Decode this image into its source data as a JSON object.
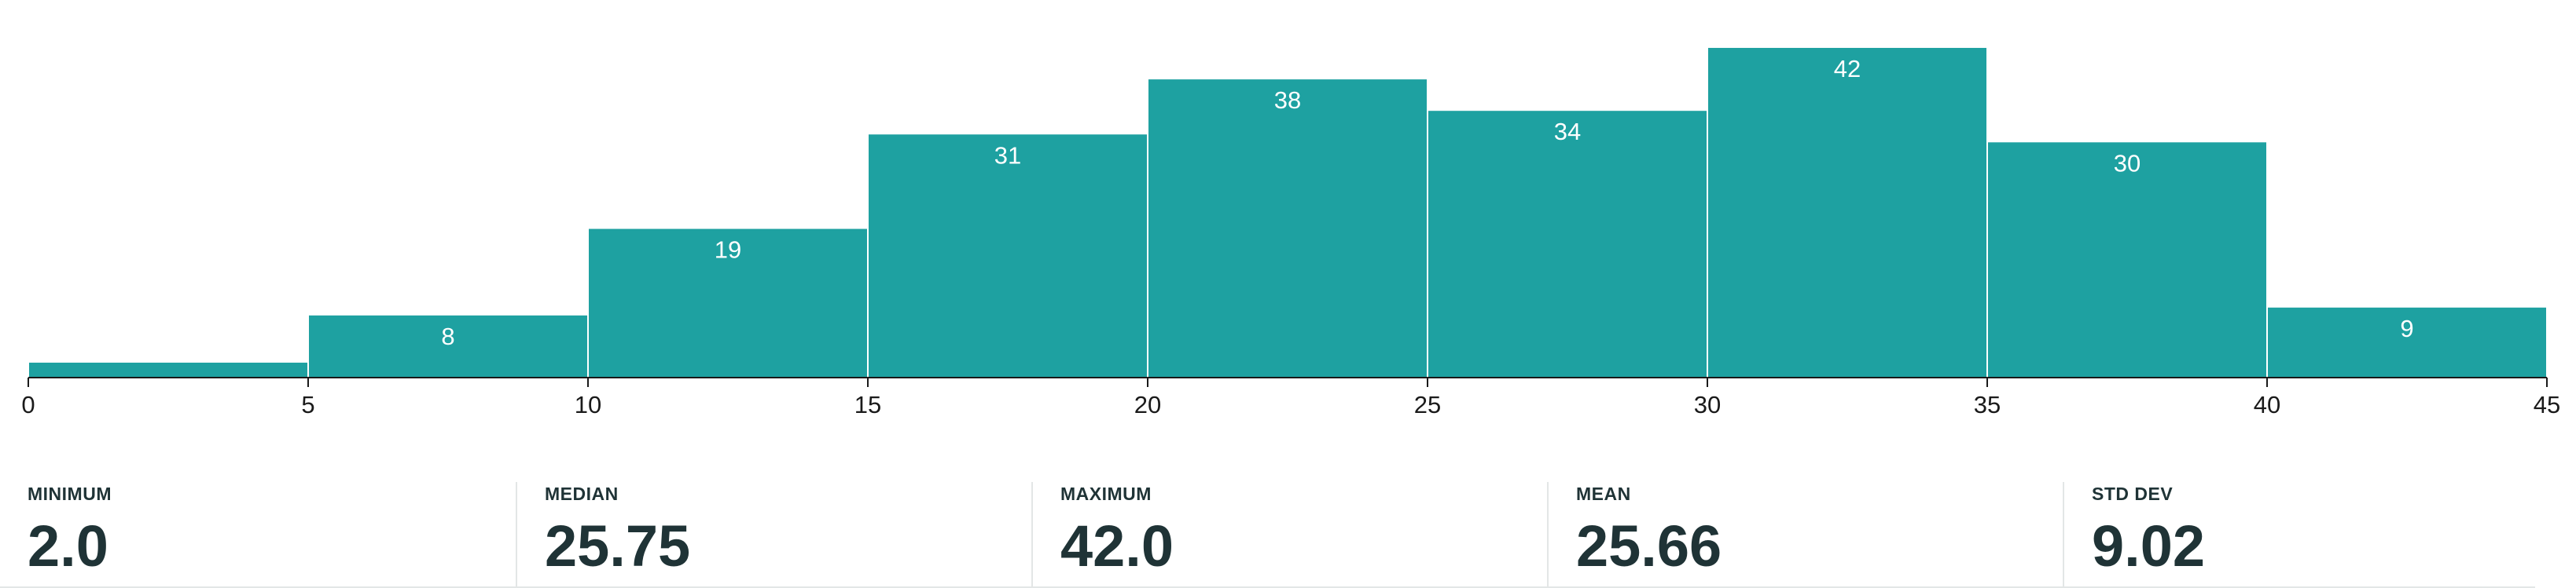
{
  "chart_data": {
    "type": "bar",
    "bins": [
      {
        "start": 0,
        "end": 5,
        "count": 2
      },
      {
        "start": 5,
        "end": 10,
        "count": 8
      },
      {
        "start": 10,
        "end": 15,
        "count": 19
      },
      {
        "start": 15,
        "end": 20,
        "count": 31
      },
      {
        "start": 20,
        "end": 25,
        "count": 38
      },
      {
        "start": 25,
        "end": 30,
        "count": 34
      },
      {
        "start": 30,
        "end": 35,
        "count": 42
      },
      {
        "start": 35,
        "end": 40,
        "count": 30
      },
      {
        "start": 40,
        "end": 45,
        "count": 9
      }
    ],
    "bar_labels": [
      "",
      "8",
      "19",
      "31",
      "38",
      "34",
      "42",
      "30",
      "9"
    ],
    "x_ticks": [
      "0",
      "5",
      "10",
      "15",
      "20",
      "25",
      "30",
      "35",
      "40",
      "45"
    ],
    "xlim": [
      0,
      45
    ],
    "ylim": [
      0,
      43
    ],
    "grid": false,
    "bar_color": "#1ea1a1",
    "label_color": "#ffffff",
    "axis_color": "#1a1a1a"
  },
  "stats": [
    {
      "label": "MINIMUM",
      "value": "2.0"
    },
    {
      "label": "MEDIAN",
      "value": "25.75"
    },
    {
      "label": "MAXIMUM",
      "value": "42.0"
    },
    {
      "label": "MEAN",
      "value": "25.66"
    },
    {
      "label": "STD DEV",
      "value": "9.02"
    }
  ]
}
